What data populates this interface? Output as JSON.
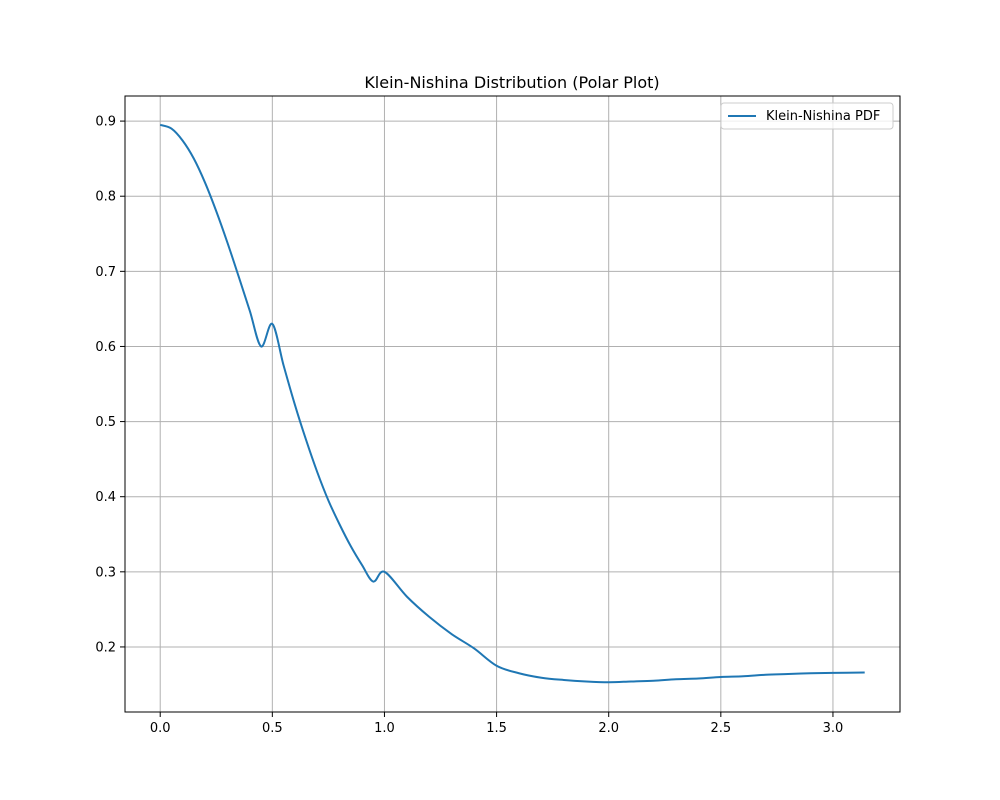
{
  "chart_data": {
    "type": "line",
    "title": "Klein-Nishina Distribution (Polar Plot)",
    "xlabel": "",
    "ylabel": "",
    "xlim": [
      -0.157,
      3.299
    ],
    "ylim": [
      0.1134,
      0.9334
    ],
    "xticks": [
      0.0,
      0.5,
      1.0,
      1.5,
      2.0,
      2.5,
      3.0
    ],
    "xtick_labels": [
      "0.0",
      "0.5",
      "1.0",
      "1.5",
      "2.0",
      "2.5",
      "3.0"
    ],
    "yticks": [
      0.2,
      0.3,
      0.4,
      0.5,
      0.6,
      0.7,
      0.8,
      0.9
    ],
    "ytick_labels": [
      "0.2",
      "0.3",
      "0.4",
      "0.5",
      "0.6",
      "0.7",
      "0.8",
      "0.9"
    ],
    "grid": true,
    "legend_position": "top-right",
    "series": [
      {
        "name": "Klein-Nishina PDF",
        "color": "#1f77b4",
        "x": [
          0.0,
          0.05,
          0.1,
          0.15,
          0.2,
          0.25,
          0.3,
          0.35,
          0.4,
          0.45,
          0.5,
          0.55,
          0.6,
          0.65,
          0.7,
          0.75,
          0.8,
          0.85,
          0.9,
          0.95,
          1.0,
          1.1,
          1.2,
          1.3,
          1.4,
          1.5,
          1.6,
          1.7,
          1.8,
          1.9,
          2.0,
          2.1,
          2.2,
          2.3,
          2.4,
          2.5,
          2.6,
          2.7,
          2.8,
          2.9,
          3.0,
          3.1416
        ],
        "y": [
          0.895,
          0.89,
          0.874,
          0.85,
          0.818,
          0.78,
          0.738,
          0.693,
          0.647,
          0.6,
          0.63,
          0.575,
          0.523,
          0.476,
          0.433,
          0.395,
          0.363,
          0.334,
          0.309,
          0.287,
          0.3,
          0.267,
          0.24,
          0.217,
          0.198,
          0.175,
          0.165,
          0.159,
          0.156,
          0.154,
          0.153,
          0.154,
          0.155,
          0.157,
          0.158,
          0.16,
          0.161,
          0.163,
          0.164,
          0.165,
          0.1655,
          0.166
        ]
      }
    ]
  }
}
